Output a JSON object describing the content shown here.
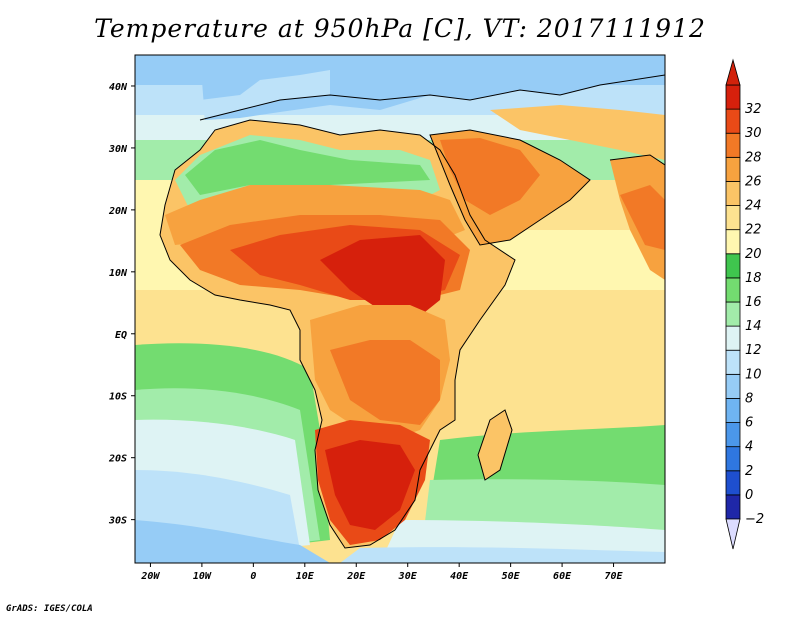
{
  "title": "Temperature at 950hPa [C], VT: 2017111912",
  "credit": "GrADS: IGES/COLA",
  "map": {
    "lon_range": [
      -23,
      80
    ],
    "lat_range": [
      -37,
      45
    ],
    "x_ticks": [
      {
        "value": -20,
        "label": "20W"
      },
      {
        "value": -10,
        "label": "10W"
      },
      {
        "value": 0,
        "label": "0"
      },
      {
        "value": 10,
        "label": "10E"
      },
      {
        "value": 20,
        "label": "20E"
      },
      {
        "value": 30,
        "label": "30E"
      },
      {
        "value": 40,
        "label": "40E"
      },
      {
        "value": 50,
        "label": "50E"
      },
      {
        "value": 60,
        "label": "60E"
      },
      {
        "value": 70,
        "label": "70E"
      }
    ],
    "y_ticks": [
      {
        "value": 40,
        "label": "40N"
      },
      {
        "value": 30,
        "label": "30N"
      },
      {
        "value": 20,
        "label": "20N"
      },
      {
        "value": 10,
        "label": "10N"
      },
      {
        "value": 0,
        "label": "EQ"
      },
      {
        "value": -10,
        "label": "10S"
      },
      {
        "value": -20,
        "label": "20S"
      },
      {
        "value": -30,
        "label": "30S"
      }
    ]
  },
  "colorbar": {
    "levels": [
      -2,
      0,
      2,
      4,
      6,
      8,
      10,
      12,
      14,
      16,
      18,
      20,
      22,
      24,
      26,
      28,
      30,
      32
    ],
    "colors": [
      "#1f27a8",
      "#1e4fcf",
      "#2f77e0",
      "#4b97ea",
      "#6fb4f2",
      "#96ccf6",
      "#bde2f9",
      "#def3f4",
      "#a2ecaa",
      "#73dc70",
      "#3fc54e",
      "#fff7b0",
      "#fde290",
      "#fbc466",
      "#f7a23f",
      "#f27926",
      "#e94a17",
      "#d6200c"
    ],
    "under_color": "#dcdcff",
    "over_color": "#d2220b"
  }
}
